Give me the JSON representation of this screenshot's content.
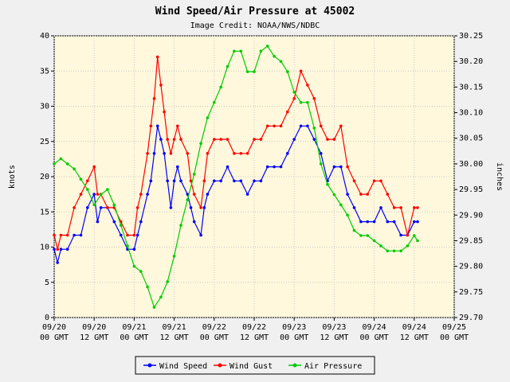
{
  "chart_data": {
    "type": "line",
    "title": "Wind Speed/Air Pressure at 45002",
    "subtitle": "Image Credit: NOAA/NWS/NDBC",
    "ylabel_left": "knots",
    "ylabel_right": "inches",
    "ylim_left": [
      0,
      40
    ],
    "ylim_right": [
      29.7,
      30.25
    ],
    "yticks_left": [
      "0",
      "5",
      "10",
      "15",
      "20",
      "25",
      "30",
      "35",
      "40"
    ],
    "yticks_right": [
      "29.70",
      "29.75",
      "29.80",
      "29.85",
      "29.90",
      "29.95",
      "30.00",
      "30.05",
      "30.10",
      "30.15",
      "30.20",
      "30.25"
    ],
    "x_hours_range": [
      0,
      120
    ],
    "xticks": [
      {
        "date": "09/20",
        "time": "00 GMT"
      },
      {
        "date": "09/20",
        "time": "12 GMT"
      },
      {
        "date": "09/21",
        "time": "00 GMT"
      },
      {
        "date": "09/21",
        "time": "12 GMT"
      },
      {
        "date": "09/22",
        "time": "00 GMT"
      },
      {
        "date": "09/22",
        "time": "12 GMT"
      },
      {
        "date": "09/23",
        "time": "00 GMT"
      },
      {
        "date": "09/23",
        "time": "12 GMT"
      },
      {
        "date": "09/24",
        "time": "00 GMT"
      },
      {
        "date": "09/24",
        "time": "12 GMT"
      },
      {
        "date": "09/25",
        "time": "00 GMT"
      }
    ],
    "legend_position": "bottom",
    "grid": true,
    "series": [
      {
        "name": "Wind Speed",
        "axis": "left",
        "color": "#0000ff",
        "points": [
          [
            0,
            9.7
          ],
          [
            1,
            7.8
          ],
          [
            2,
            9.7
          ],
          [
            4,
            9.7
          ],
          [
            6,
            11.7
          ],
          [
            8,
            11.7
          ],
          [
            10,
            15.6
          ],
          [
            12,
            17.5
          ],
          [
            13,
            13.6
          ],
          [
            14,
            15.6
          ],
          [
            16,
            15.6
          ],
          [
            18,
            13.6
          ],
          [
            20,
            11.7
          ],
          [
            22,
            9.7
          ],
          [
            24,
            9.7
          ],
          [
            25,
            11.7
          ],
          [
            26,
            13.6
          ],
          [
            28,
            17.5
          ],
          [
            29,
            19.4
          ],
          [
            30,
            23.3
          ],
          [
            31,
            27.2
          ],
          [
            32,
            25.3
          ],
          [
            33,
            23.3
          ],
          [
            34,
            19.4
          ],
          [
            35,
            15.6
          ],
          [
            36,
            19.4
          ],
          [
            37,
            21.4
          ],
          [
            38,
            19.4
          ],
          [
            40,
            17.5
          ],
          [
            41,
            15.6
          ],
          [
            42,
            13.6
          ],
          [
            44,
            11.7
          ],
          [
            45,
            15.6
          ],
          [
            46,
            17.5
          ],
          [
            48,
            19.4
          ],
          [
            50,
            19.4
          ],
          [
            52,
            21.4
          ],
          [
            54,
            19.4
          ],
          [
            56,
            19.4
          ],
          [
            58,
            17.5
          ],
          [
            60,
            19.4
          ],
          [
            62,
            19.4
          ],
          [
            64,
            21.4
          ],
          [
            66,
            21.4
          ],
          [
            68,
            21.4
          ],
          [
            70,
            23.3
          ],
          [
            72,
            25.3
          ],
          [
            74,
            27.2
          ],
          [
            76,
            27.2
          ],
          [
            78,
            25.3
          ],
          [
            80,
            23.3
          ],
          [
            82,
            19.4
          ],
          [
            84,
            21.4
          ],
          [
            86,
            21.4
          ],
          [
            88,
            17.5
          ],
          [
            90,
            15.6
          ],
          [
            92,
            13.6
          ],
          [
            94,
            13.6
          ],
          [
            96,
            13.6
          ],
          [
            98,
            15.6
          ],
          [
            100,
            13.6
          ],
          [
            102,
            13.6
          ],
          [
            104,
            11.7
          ],
          [
            106,
            11.7
          ],
          [
            108,
            13.6
          ],
          [
            109,
            13.6
          ]
        ]
      },
      {
        "name": "Wind Gust",
        "axis": "left",
        "color": "#ff0000",
        "points": [
          [
            0,
            11.7
          ],
          [
            1,
            9.7
          ],
          [
            2,
            11.7
          ],
          [
            4,
            11.7
          ],
          [
            6,
            15.6
          ],
          [
            8,
            17.5
          ],
          [
            10,
            19.4
          ],
          [
            12,
            21.4
          ],
          [
            13,
            17.5
          ],
          [
            14,
            17.5
          ],
          [
            16,
            15.6
          ],
          [
            18,
            15.6
          ],
          [
            20,
            13.6
          ],
          [
            22,
            11.7
          ],
          [
            24,
            11.7
          ],
          [
            25,
            15.6
          ],
          [
            26,
            17.5
          ],
          [
            28,
            23.3
          ],
          [
            29,
            27.2
          ],
          [
            30,
            31.1
          ],
          [
            31,
            37.0
          ],
          [
            32,
            33.0
          ],
          [
            33,
            29.2
          ],
          [
            34,
            25.3
          ],
          [
            35,
            23.3
          ],
          [
            36,
            25.3
          ],
          [
            37,
            27.2
          ],
          [
            38,
            25.3
          ],
          [
            40,
            23.3
          ],
          [
            41,
            19.4
          ],
          [
            42,
            17.5
          ],
          [
            44,
            15.6
          ],
          [
            45,
            19.4
          ],
          [
            46,
            23.3
          ],
          [
            48,
            25.3
          ],
          [
            50,
            25.3
          ],
          [
            52,
            25.3
          ],
          [
            54,
            23.3
          ],
          [
            56,
            23.3
          ],
          [
            58,
            23.3
          ],
          [
            60,
            25.3
          ],
          [
            62,
            25.3
          ],
          [
            64,
            27.2
          ],
          [
            66,
            27.2
          ],
          [
            68,
            27.2
          ],
          [
            70,
            29.2
          ],
          [
            72,
            31.1
          ],
          [
            74,
            35.0
          ],
          [
            76,
            33.0
          ],
          [
            78,
            31.1
          ],
          [
            80,
            27.2
          ],
          [
            82,
            25.3
          ],
          [
            84,
            25.3
          ],
          [
            86,
            27.2
          ],
          [
            88,
            21.4
          ],
          [
            90,
            19.4
          ],
          [
            92,
            17.5
          ],
          [
            94,
            17.5
          ],
          [
            96,
            19.4
          ],
          [
            98,
            19.4
          ],
          [
            100,
            17.5
          ],
          [
            102,
            15.6
          ],
          [
            104,
            15.6
          ],
          [
            106,
            11.7
          ],
          [
            108,
            15.6
          ],
          [
            109,
            15.6
          ]
        ]
      },
      {
        "name": "Air Pressure",
        "axis": "right",
        "color": "#00cc00",
        "points": [
          [
            0,
            30.0
          ],
          [
            2,
            30.01
          ],
          [
            4,
            30.0
          ],
          [
            6,
            29.99
          ],
          [
            8,
            29.97
          ],
          [
            10,
            29.95
          ],
          [
            12,
            29.92
          ],
          [
            14,
            29.94
          ],
          [
            16,
            29.95
          ],
          [
            18,
            29.92
          ],
          [
            20,
            29.88
          ],
          [
            22,
            29.84
          ],
          [
            24,
            29.8
          ],
          [
            26,
            29.79
          ],
          [
            28,
            29.76
          ],
          [
            30,
            29.72
          ],
          [
            32,
            29.74
          ],
          [
            34,
            29.77
          ],
          [
            36,
            29.82
          ],
          [
            38,
            29.88
          ],
          [
            40,
            29.93
          ],
          [
            42,
            29.98
          ],
          [
            44,
            30.04
          ],
          [
            46,
            30.09
          ],
          [
            48,
            30.12
          ],
          [
            50,
            30.15
          ],
          [
            52,
            30.19
          ],
          [
            54,
            30.22
          ],
          [
            56,
            30.22
          ],
          [
            58,
            30.18
          ],
          [
            60,
            30.18
          ],
          [
            62,
            30.22
          ],
          [
            64,
            30.23
          ],
          [
            66,
            30.21
          ],
          [
            68,
            30.2
          ],
          [
            70,
            30.18
          ],
          [
            72,
            30.14
          ],
          [
            74,
            30.12
          ],
          [
            76,
            30.12
          ],
          [
            78,
            30.07
          ],
          [
            80,
            30.0
          ],
          [
            82,
            29.96
          ],
          [
            84,
            29.94
          ],
          [
            86,
            29.92
          ],
          [
            88,
            29.9
          ],
          [
            90,
            29.87
          ],
          [
            92,
            29.86
          ],
          [
            94,
            29.86
          ],
          [
            96,
            29.85
          ],
          [
            98,
            29.84
          ],
          [
            100,
            29.83
          ],
          [
            102,
            29.83
          ],
          [
            104,
            29.83
          ],
          [
            106,
            29.84
          ],
          [
            108,
            29.86
          ],
          [
            109,
            29.85
          ]
        ]
      }
    ]
  }
}
